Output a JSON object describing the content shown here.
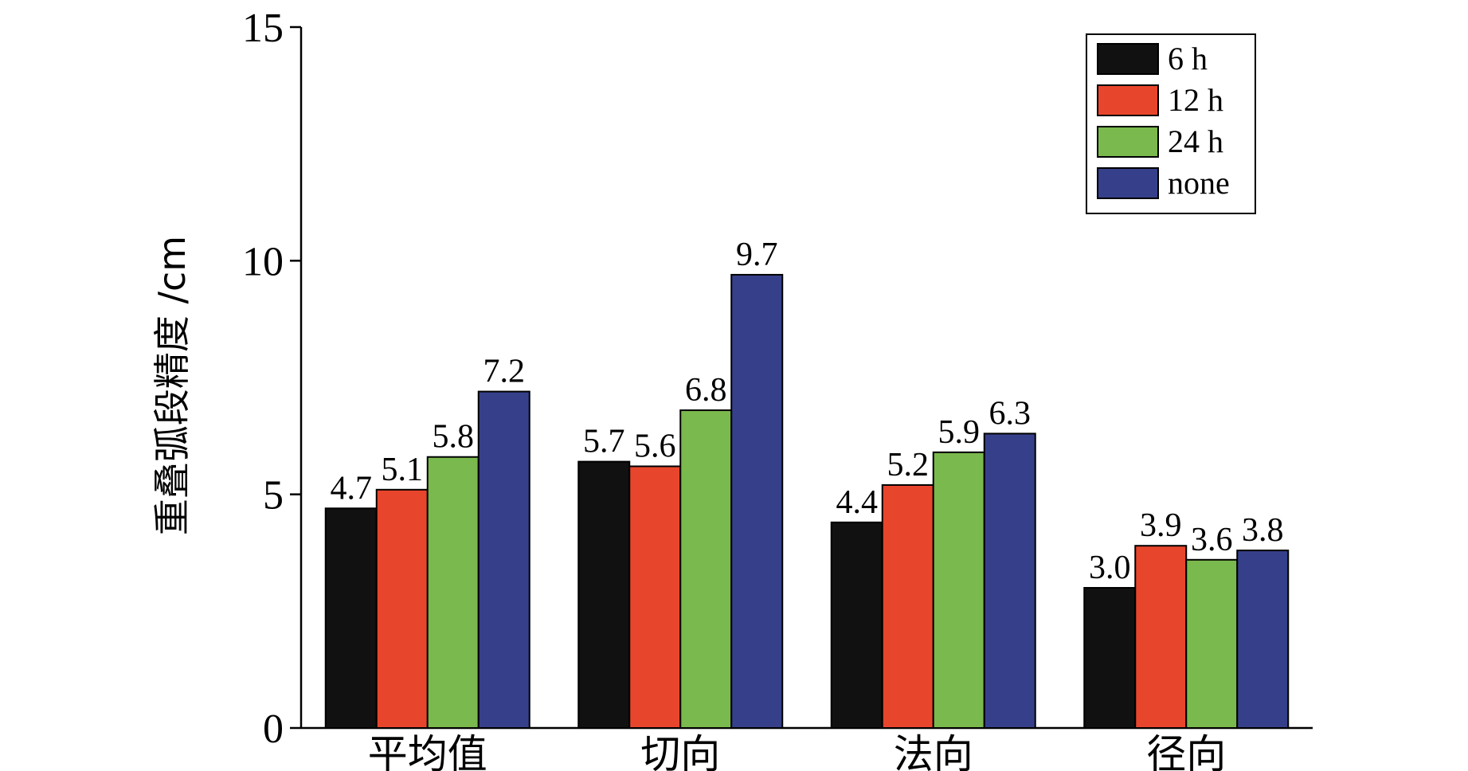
{
  "chart_data": {
    "type": "bar",
    "ylabel": "重叠弧段精度 /cm",
    "xlabel": "",
    "ylim": [
      0,
      15
    ],
    "yticks": [
      "0",
      "5",
      "10",
      "15"
    ],
    "categories": [
      "平均值",
      "切向",
      "法向",
      "径向"
    ],
    "series": [
      {
        "name": "6 h",
        "color": "#111111",
        "values": [
          4.7,
          5.7,
          4.4,
          3.0
        ],
        "labels": [
          "4.7",
          "5.7",
          "4.4",
          "3.0"
        ]
      },
      {
        "name": "12 h",
        "color": "#e8462c",
        "values": [
          5.1,
          5.6,
          5.2,
          3.9
        ],
        "labels": [
          "5.1",
          "5.6",
          "5.2",
          "3.9"
        ]
      },
      {
        "name": "24 h",
        "color": "#7ab94d",
        "values": [
          5.8,
          6.8,
          5.9,
          3.6
        ],
        "labels": [
          "5.8",
          "6.8",
          "5.9",
          "3.6"
        ]
      },
      {
        "name": "none",
        "color": "#36408a",
        "values": [
          7.2,
          9.7,
          6.3,
          3.8
        ],
        "labels": [
          "7.2",
          "9.7",
          "6.3",
          "3.8"
        ]
      }
    ],
    "legend_position": "top-right",
    "grid": false
  }
}
